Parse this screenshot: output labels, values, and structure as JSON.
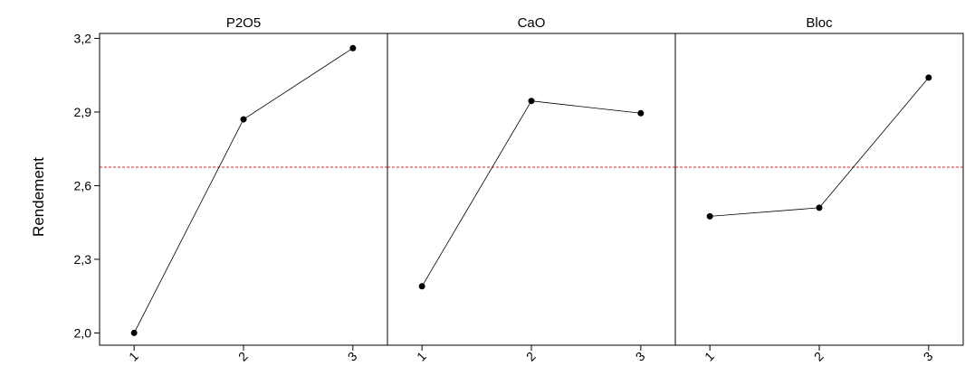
{
  "chart_data": {
    "type": "line",
    "title": "",
    "ylabel": "Rendement",
    "ylim": [
      1.95,
      3.22
    ],
    "yticks": [
      2.0,
      2.3,
      2.6,
      2.9,
      3.2
    ],
    "ytick_labels": [
      "2,0",
      "2,3",
      "2,6",
      "2,9",
      "3,2"
    ],
    "reference_line": {
      "value": 2.675,
      "color": "#d62728",
      "style": "dashed"
    },
    "line_color": "#000000",
    "marker_color": "#000000",
    "grid": false,
    "panels": [
      {
        "name": "P2O5",
        "categories": [
          "1",
          "2",
          "3"
        ],
        "values": [
          2.0,
          2.87,
          3.16
        ]
      },
      {
        "name": "CaO",
        "categories": [
          "1",
          "2",
          "3"
        ],
        "values": [
          2.19,
          2.945,
          2.895
        ]
      },
      {
        "name": "Bloc",
        "categories": [
          "1",
          "2",
          "3"
        ],
        "values": [
          2.475,
          2.51,
          3.04
        ]
      }
    ]
  }
}
